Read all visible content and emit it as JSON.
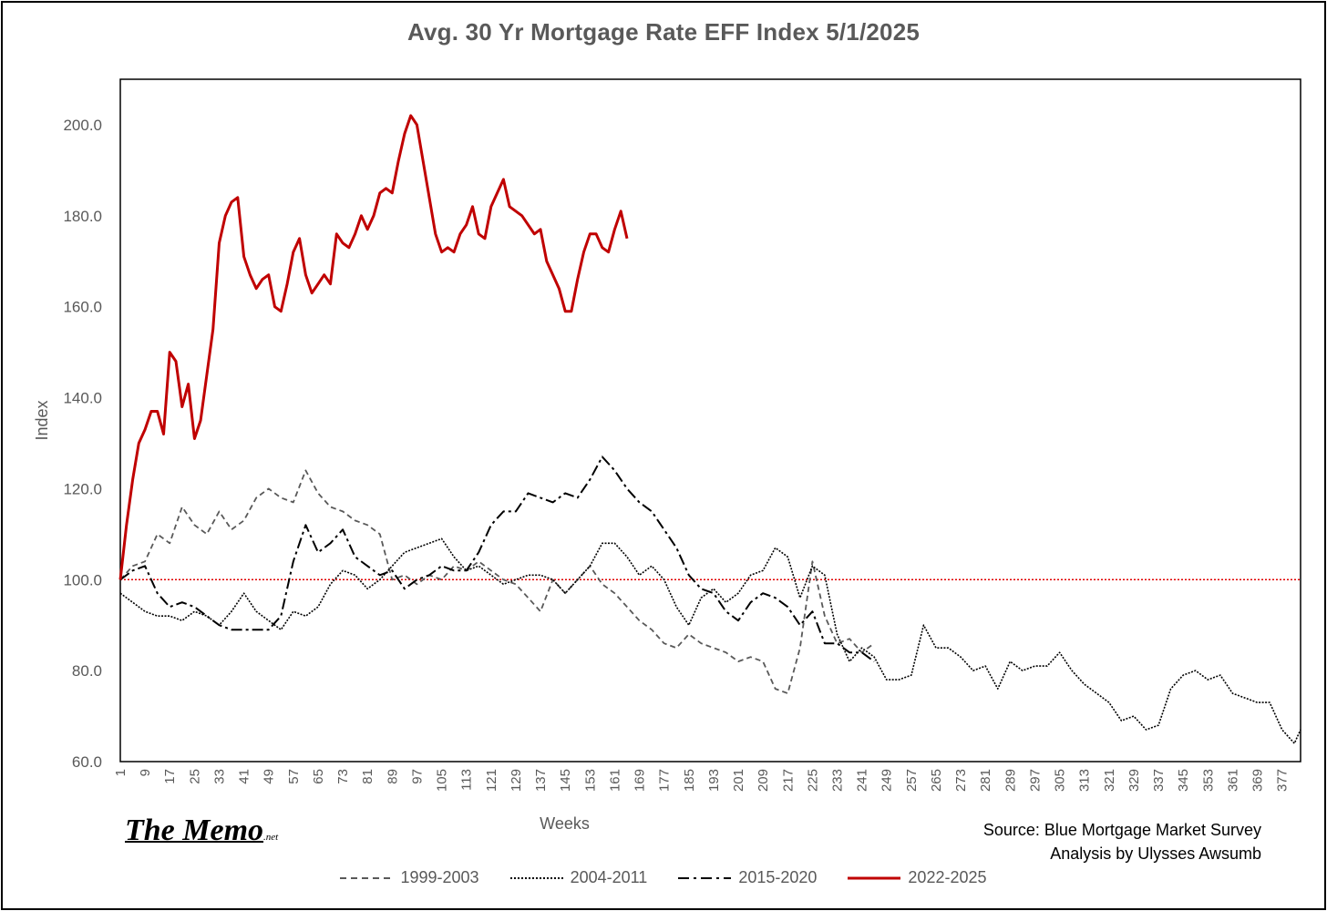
{
  "chart_data": {
    "type": "line",
    "title": "Avg. 30 Yr Mortgage Rate EFF  Index  5/1/2025",
    "xlabel": "Weeks",
    "ylabel": "Index",
    "xlim": [
      1,
      383
    ],
    "ylim": [
      60,
      210
    ],
    "y_ticks": [
      "60.0",
      "80.0",
      "100.0",
      "120.0",
      "140.0",
      "160.0",
      "180.0",
      "200.0"
    ],
    "x_ticks": [
      "1",
      "9",
      "17",
      "25",
      "33",
      "41",
      "49",
      "57",
      "65",
      "73",
      "81",
      "89",
      "97",
      "105",
      "113",
      "121",
      "129",
      "137",
      "145",
      "153",
      "161",
      "169",
      "177",
      "185",
      "193",
      "201",
      "209",
      "217",
      "225",
      "233",
      "241",
      "249",
      "257",
      "265",
      "273",
      "281",
      "289",
      "297",
      "305",
      "313",
      "321",
      "329",
      "337",
      "345",
      "353",
      "361",
      "369",
      "377"
    ],
    "reference_line": 100,
    "legend_position": "bottom",
    "grid": false,
    "series": [
      {
        "name": "1999-2003",
        "style": "dashed",
        "color": "#595959",
        "x": [
          1,
          5,
          9,
          13,
          17,
          21,
          25,
          29,
          33,
          37,
          41,
          45,
          49,
          53,
          57,
          61,
          65,
          69,
          73,
          77,
          81,
          85,
          89,
          93,
          97,
          101,
          105,
          109,
          113,
          117,
          121,
          125,
          129,
          133,
          137,
          141,
          145,
          149,
          153,
          157,
          161,
          165,
          169,
          173,
          177,
          181,
          185,
          189,
          193,
          197,
          201,
          205,
          209,
          213,
          217,
          221,
          225,
          229,
          233,
          237,
          241,
          245
        ],
        "values": [
          100,
          103,
          104,
          110,
          108,
          116,
          112,
          110,
          115,
          111,
          113,
          118,
          120,
          118,
          117,
          124,
          119,
          116,
          115,
          113,
          112,
          110,
          100,
          101,
          99,
          101,
          100,
          103,
          102,
          104,
          102,
          100,
          99,
          96,
          93,
          100,
          97,
          100,
          103,
          99,
          97,
          94,
          91,
          89,
          86,
          85,
          88,
          86,
          85,
          84,
          82,
          83,
          82,
          76,
          75,
          85,
          104,
          92,
          86,
          87,
          84,
          86
        ],
        "color_hex": "#595959"
      },
      {
        "name": "2004-2011",
        "style": "dotted",
        "color": "#000000",
        "x": [
          1,
          5,
          9,
          13,
          17,
          21,
          25,
          29,
          33,
          37,
          41,
          45,
          49,
          53,
          57,
          61,
          65,
          69,
          73,
          77,
          81,
          85,
          89,
          93,
          97,
          101,
          105,
          109,
          113,
          117,
          121,
          125,
          129,
          133,
          137,
          141,
          145,
          149,
          153,
          157,
          161,
          165,
          169,
          173,
          177,
          181,
          185,
          189,
          193,
          197,
          201,
          205,
          209,
          213,
          217,
          221,
          225,
          229,
          233,
          237,
          241,
          245,
          249,
          253,
          257,
          261,
          265,
          269,
          273,
          277,
          281,
          285,
          289,
          293,
          297,
          301,
          305,
          309,
          313,
          317,
          321,
          325,
          329,
          333,
          337,
          341,
          345,
          349,
          353,
          357,
          361,
          365,
          369,
          373,
          377,
          381,
          383
        ],
        "values": [
          97,
          95,
          93,
          92,
          92,
          91,
          93,
          92,
          90,
          93,
          97,
          93,
          91,
          89,
          93,
          92,
          94,
          99,
          102,
          101,
          98,
          100,
          103,
          106,
          107,
          108,
          109,
          105,
          102,
          103,
          101,
          99,
          100,
          101,
          101,
          100,
          97,
          100,
          103,
          108,
          108,
          105,
          101,
          103,
          100,
          94,
          90,
          96,
          98,
          95,
          97,
          101,
          102,
          107,
          105,
          96,
          103,
          101,
          88,
          82,
          85,
          83,
          78,
          78,
          79,
          90,
          85,
          85,
          83,
          80,
          81,
          76,
          82,
          80,
          81,
          81,
          84,
          80,
          77,
          75,
          73,
          69,
          70,
          67,
          68,
          76,
          79,
          80,
          78,
          79,
          75,
          74,
          73,
          73,
          67,
          64,
          67
        ]
      },
      {
        "name": "2015-2020",
        "style": "dashdot",
        "color": "#000000",
        "x": [
          1,
          5,
          9,
          13,
          17,
          21,
          25,
          29,
          33,
          37,
          41,
          45,
          49,
          53,
          57,
          61,
          65,
          69,
          73,
          77,
          81,
          85,
          89,
          93,
          97,
          101,
          105,
          109,
          113,
          117,
          121,
          125,
          129,
          133,
          137,
          141,
          145,
          149,
          153,
          157,
          161,
          165,
          169,
          173,
          177,
          181,
          185,
          189,
          193,
          197,
          201,
          205,
          209,
          213,
          217,
          221,
          225,
          229,
          233,
          237,
          241,
          245
        ],
        "values": [
          100,
          102,
          103,
          97,
          94,
          95,
          94,
          92,
          90,
          89,
          89,
          89,
          89,
          92,
          104,
          112,
          106,
          108,
          111,
          105,
          103,
          101,
          102,
          98,
          100,
          101,
          103,
          102,
          102,
          106,
          112,
          115,
          115,
          119,
          118,
          117,
          119,
          118,
          122,
          127,
          124,
          120,
          117,
          115,
          111,
          107,
          101,
          98,
          97,
          93,
          91,
          95,
          97,
          96,
          94,
          90,
          93,
          86,
          86,
          84,
          84,
          82
        ]
      },
      {
        "name": "2022-2025",
        "style": "solid",
        "color": "#c00000",
        "x": [
          1,
          3,
          5,
          7,
          9,
          11,
          13,
          15,
          17,
          19,
          21,
          23,
          25,
          27,
          29,
          31,
          33,
          35,
          37,
          39,
          41,
          43,
          45,
          47,
          49,
          51,
          53,
          55,
          57,
          59,
          61,
          63,
          65,
          67,
          69,
          71,
          73,
          75,
          77,
          79,
          81,
          83,
          85,
          87,
          89,
          91,
          93,
          95,
          97,
          99,
          101,
          103,
          105,
          107,
          109,
          111,
          113,
          115,
          117,
          119,
          121,
          123,
          125,
          127,
          129,
          131,
          133,
          135,
          137,
          139,
          141,
          143,
          145,
          147,
          149,
          151,
          153,
          155,
          157,
          159,
          161,
          163,
          165
        ],
        "values": [
          100,
          112,
          122,
          130,
          133,
          137,
          137,
          132,
          150,
          148,
          138,
          143,
          131,
          135,
          145,
          155,
          174,
          180,
          183,
          184,
          171,
          167,
          164,
          166,
          167,
          160,
          159,
          165,
          172,
          175,
          167,
          163,
          165,
          167,
          165,
          176,
          174,
          173,
          176,
          180,
          177,
          180,
          185,
          186,
          185,
          192,
          198,
          202,
          200,
          192,
          184,
          176,
          172,
          173,
          172,
          176,
          178,
          182,
          176,
          175,
          182,
          185,
          188,
          182,
          181,
          180,
          178,
          176,
          177,
          170,
          167,
          164,
          159,
          159,
          166,
          172,
          176,
          176,
          173,
          172,
          177,
          181,
          175
        ]
      }
    ]
  },
  "annotations": {
    "logo": "The Memo",
    "logo_tld": ".net",
    "source": "Source: Blue Mortgage Market Survey",
    "analysis": "Analysis by Ulysses Awsumb"
  },
  "legend": {
    "items": [
      {
        "label": "1999-2003",
        "style": "dashed",
        "color": "#595959"
      },
      {
        "label": "2004-2011",
        "style": "dotted",
        "color": "#000000"
      },
      {
        "label": "2015-2020",
        "style": "dashdot",
        "color": "#000000"
      },
      {
        "label": "2022-2025",
        "style": "solid",
        "color": "#c00000"
      }
    ]
  }
}
